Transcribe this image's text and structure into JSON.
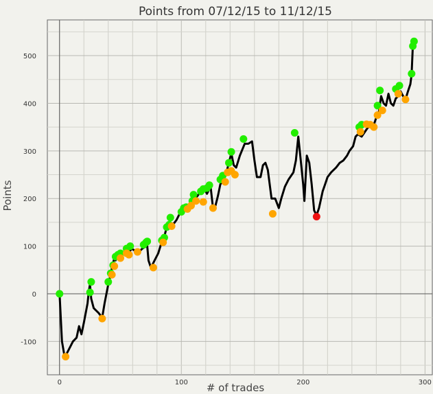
{
  "chart_data": {
    "type": "line",
    "title": "Points from 07/12/15 to 11/12/15",
    "xlabel": "# of trades",
    "ylabel": "Points",
    "xlim": [
      -10,
      306
    ],
    "ylim": [
      -170,
      575
    ],
    "x_ticks": [
      0,
      100,
      200,
      300
    ],
    "y_ticks": [
      -100,
      0,
      100,
      200,
      300,
      400,
      500
    ],
    "grid": true,
    "line_color": "#000000",
    "colors": {
      "green": "#22ee00",
      "orange": "#ffa500",
      "red": "#ee1111"
    },
    "series": [
      {
        "type": "line",
        "points": [
          [
            0,
            0
          ],
          [
            2,
            -100
          ],
          [
            4,
            -130
          ],
          [
            6,
            -125
          ],
          [
            8,
            -115
          ],
          [
            11,
            -100
          ],
          [
            14,
            -92
          ],
          [
            16,
            -68
          ],
          [
            18,
            -85
          ],
          [
            20,
            -60
          ],
          [
            23,
            -20
          ],
          [
            24,
            5
          ],
          [
            25,
            20
          ],
          [
            26,
            -10
          ],
          [
            28,
            -30
          ],
          [
            30,
            -35
          ],
          [
            32,
            -40
          ],
          [
            35,
            -50
          ],
          [
            37,
            -20
          ],
          [
            40,
            20
          ],
          [
            42,
            40
          ],
          [
            43,
            55
          ],
          [
            45,
            75
          ],
          [
            46,
            70
          ],
          [
            48,
            80
          ],
          [
            50,
            85
          ],
          [
            52,
            85
          ],
          [
            55,
            80
          ],
          [
            57,
            85
          ],
          [
            59,
            95
          ],
          [
            61,
            92
          ],
          [
            64,
            85
          ],
          [
            68,
            95
          ],
          [
            70,
            98
          ],
          [
            72,
            100
          ],
          [
            73,
            70
          ],
          [
            75,
            55
          ],
          [
            77,
            65
          ],
          [
            79,
            75
          ],
          [
            81,
            85
          ],
          [
            84,
            110
          ],
          [
            86,
            120
          ],
          [
            88,
            140
          ],
          [
            90,
            145
          ],
          [
            94,
            148
          ],
          [
            96,
            155
          ],
          [
            98,
            165
          ],
          [
            100,
            175
          ],
          [
            102,
            180
          ],
          [
            104,
            182
          ],
          [
            107,
            190
          ],
          [
            110,
            200
          ],
          [
            113,
            205
          ],
          [
            116,
            215
          ],
          [
            119,
            220
          ],
          [
            121,
            210
          ],
          [
            124,
            225
          ],
          [
            126,
            180
          ],
          [
            128,
            185
          ],
          [
            130,
            205
          ],
          [
            132,
            230
          ],
          [
            135,
            240
          ],
          [
            137,
            255
          ],
          [
            139,
            275
          ],
          [
            141,
            295
          ],
          [
            143,
            270
          ],
          [
            145,
            265
          ],
          [
            148,
            290
          ],
          [
            152,
            315
          ],
          [
            155,
            315
          ],
          [
            158,
            320
          ],
          [
            160,
            280
          ],
          [
            162,
            245
          ],
          [
            165,
            245
          ],
          [
            167,
            270
          ],
          [
            169,
            275
          ],
          [
            171,
            260
          ],
          [
            174,
            200
          ],
          [
            177,
            200
          ],
          [
            180,
            180
          ],
          [
            182,
            200
          ],
          [
            185,
            225
          ],
          [
            188,
            240
          ],
          [
            192,
            255
          ],
          [
            194,
            280
          ],
          [
            196,
            330
          ],
          [
            198,
            280
          ],
          [
            200,
            230
          ],
          [
            201,
            195
          ],
          [
            203,
            290
          ],
          [
            205,
            275
          ],
          [
            207,
            230
          ],
          [
            209,
            175
          ],
          [
            211,
            165
          ],
          [
            213,
            180
          ],
          [
            216,
            215
          ],
          [
            218,
            230
          ],
          [
            220,
            245
          ],
          [
            223,
            255
          ],
          [
            227,
            265
          ],
          [
            230,
            275
          ],
          [
            233,
            280
          ],
          [
            236,
            290
          ],
          [
            238,
            300
          ],
          [
            241,
            310
          ],
          [
            243,
            330
          ],
          [
            245,
            335
          ],
          [
            248,
            330
          ],
          [
            252,
            345
          ],
          [
            255,
            355
          ],
          [
            258,
            355
          ],
          [
            260,
            370
          ],
          [
            262,
            380
          ],
          [
            264,
            415
          ],
          [
            266,
            400
          ],
          [
            268,
            395
          ],
          [
            270,
            420
          ],
          [
            272,
            400
          ],
          [
            274,
            395
          ],
          [
            276,
            410
          ],
          [
            278,
            415
          ],
          [
            280,
            425
          ],
          [
            282,
            415
          ],
          [
            284,
            408
          ],
          [
            286,
            425
          ],
          [
            288,
            440
          ],
          [
            289,
            460
          ],
          [
            290,
            520
          ],
          [
            291,
            530
          ]
        ]
      },
      {
        "type": "scatter",
        "color": "green",
        "points": [
          [
            0,
            0
          ],
          [
            25,
            3
          ],
          [
            26,
            25
          ],
          [
            40,
            25
          ],
          [
            42,
            43
          ],
          [
            44,
            60
          ],
          [
            46,
            78
          ],
          [
            48,
            82
          ],
          [
            50,
            85
          ],
          [
            55,
            95
          ],
          [
            58,
            100
          ],
          [
            69,
            103
          ],
          [
            71,
            108
          ],
          [
            72,
            110
          ],
          [
            84,
            112
          ],
          [
            86,
            118
          ],
          [
            88,
            140
          ],
          [
            90,
            145
          ],
          [
            91,
            160
          ],
          [
            100,
            172
          ],
          [
            102,
            180
          ],
          [
            104,
            182
          ],
          [
            109,
            195
          ],
          [
            110,
            208
          ],
          [
            116,
            215
          ],
          [
            118,
            220
          ],
          [
            121,
            222
          ],
          [
            123,
            228
          ],
          [
            132,
            240
          ],
          [
            134,
            248
          ],
          [
            139,
            275
          ],
          [
            141,
            298
          ],
          [
            151,
            325
          ],
          [
            193,
            338
          ],
          [
            246,
            350
          ],
          [
            248,
            355
          ],
          [
            261,
            395
          ],
          [
            263,
            427
          ],
          [
            276,
            430
          ],
          [
            279,
            437
          ],
          [
            289,
            462
          ],
          [
            290,
            520
          ],
          [
            291,
            530
          ]
        ]
      },
      {
        "type": "scatter",
        "color": "orange",
        "points": [
          [
            5,
            -132
          ],
          [
            35,
            -52
          ],
          [
            43,
            40
          ],
          [
            45,
            58
          ],
          [
            50,
            75
          ],
          [
            55,
            85
          ],
          [
            57,
            82
          ],
          [
            64,
            88
          ],
          [
            77,
            55
          ],
          [
            85,
            108
          ],
          [
            92,
            142
          ],
          [
            105,
            178
          ],
          [
            108,
            185
          ],
          [
            112,
            195
          ],
          [
            118,
            193
          ],
          [
            126,
            180
          ],
          [
            136,
            235
          ],
          [
            138,
            255
          ],
          [
            141,
            258
          ],
          [
            144,
            250
          ],
          [
            175,
            168
          ],
          [
            247,
            340
          ],
          [
            252,
            356
          ],
          [
            255,
            355
          ],
          [
            258,
            350
          ],
          [
            261,
            375
          ],
          [
            265,
            385
          ],
          [
            278,
            420
          ],
          [
            284,
            408
          ]
        ]
      },
      {
        "type": "scatter",
        "color": "red",
        "points": [
          [
            211,
            162
          ]
        ]
      }
    ]
  }
}
